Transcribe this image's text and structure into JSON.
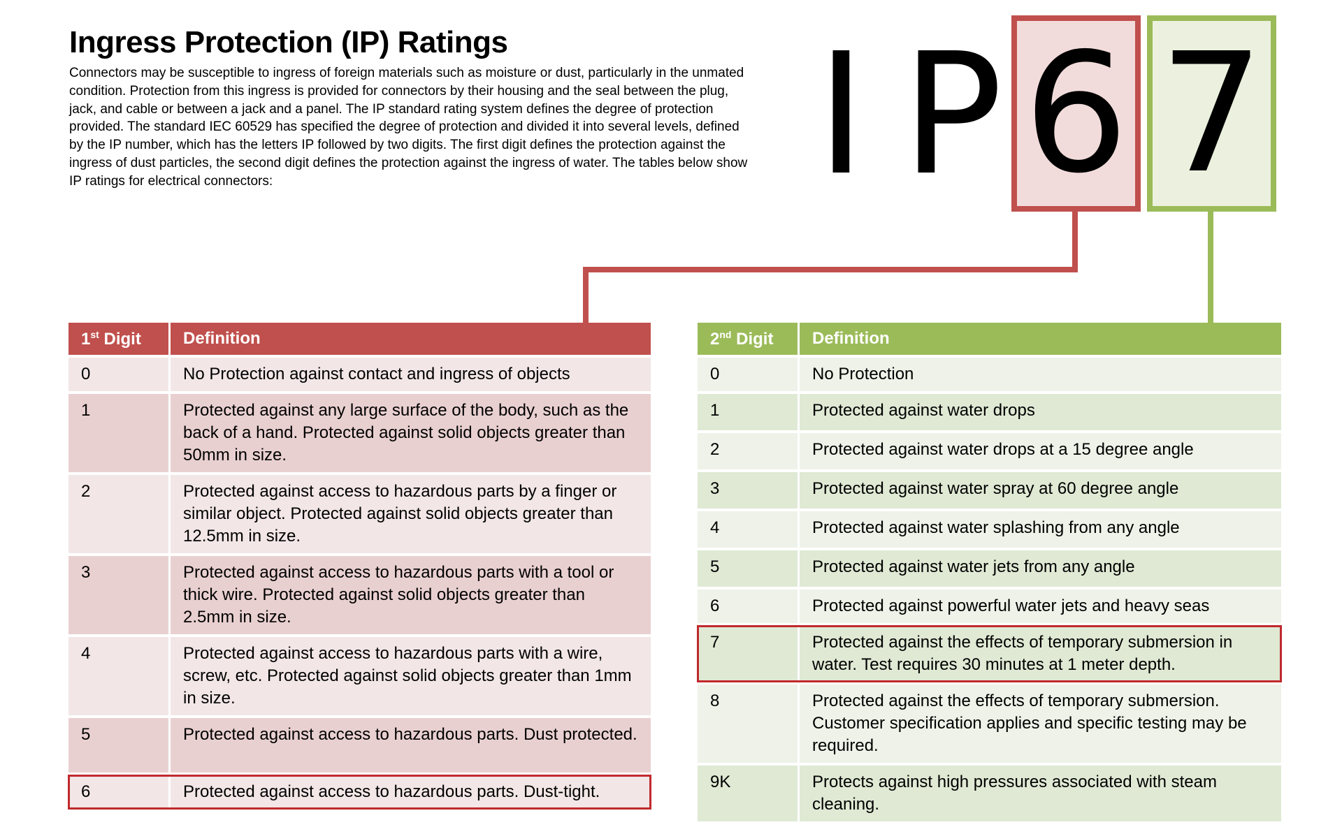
{
  "header": {
    "title": "Ingress Protection (IP) Ratings",
    "intro": "Connectors may be susceptible to ingress of foreign materials such as moisture or dust, particularly in the unmated condition.  Protection from this ingress is provided for connectors by their housing and the seal between the plug, jack, and cable or between a jack and a panel. The IP standard rating system defines the degree of protection provided. The standard IEC 60529 has specified the degree of protection and divided it into several levels, defined by the IP number, which has the letters IP followed by two digits.  The first digit defines the protection against the ingress of dust particles, the second digit defines the protection against the ingress of water. The tables below show IP ratings for electrical connectors:"
  },
  "code": {
    "letter_i": "I",
    "letter_p": "P",
    "digit1": "6",
    "digit2": "7"
  },
  "colors": {
    "red": "#c0504d",
    "green": "#9bbb59",
    "highlight": "#c0292d"
  },
  "table1": {
    "header_digit": "1",
    "header_suffix": "st",
    "header_word": "Digit",
    "header_def": "Definition",
    "highlighted_row": "6",
    "rows": [
      {
        "d": "0",
        "def": "No Protection against contact and ingress of objects"
      },
      {
        "d": "1",
        "def": "Protected against any large surface of the body, such as the back of a hand.  Protected against solid objects greater than 50mm in size."
      },
      {
        "d": "2",
        "def": "Protected against access to hazardous parts by a finger or similar object.  Protected against solid objects greater than 12.5mm in size."
      },
      {
        "d": "3",
        "def": "Protected against access to hazardous parts with a tool or thick wire.  Protected against solid objects greater than 2.5mm in size."
      },
      {
        "d": "4",
        "def": "Protected against access to hazardous parts with a wire, screw, etc.  Protected against solid objects greater than 1mm in size."
      },
      {
        "d": "5",
        "def": "Protected against access to hazardous parts.  Dust protected."
      },
      {
        "d": "6",
        "def": "Protected against access to hazardous parts.  Dust-tight."
      }
    ]
  },
  "table2": {
    "header_digit": "2",
    "header_suffix": "nd",
    "header_word": "Digit",
    "header_def": "Definition",
    "highlighted_row": "7",
    "rows": [
      {
        "d": "0",
        "def": "No Protection"
      },
      {
        "d": "1",
        "def": "Protected against water drops"
      },
      {
        "d": "2",
        "def": "Protected against water drops at a 15 degree angle"
      },
      {
        "d": "3",
        "def": "Protected against water spray at 60 degree angle"
      },
      {
        "d": "4",
        "def": "Protected against water splashing from any angle"
      },
      {
        "d": "5",
        "def": "Protected against water jets from any angle"
      },
      {
        "d": "6",
        "def": "Protected against powerful water jets and heavy seas"
      },
      {
        "d": "7",
        "def": "Protected against the effects of temporary submersion in water.  Test requires 30 minutes at 1 meter depth."
      },
      {
        "d": "8",
        "def": "Protected against the effects of temporary submersion.  Customer specification applies and specific testing may be required."
      },
      {
        "d": "9K",
        "def": "Protects against high pressures associated with steam cleaning."
      }
    ]
  }
}
